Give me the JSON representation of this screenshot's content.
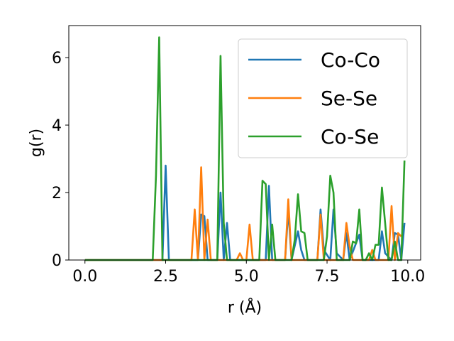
{
  "chart_data": {
    "type": "line",
    "xlabel": "r (Å)",
    "ylabel": "g(r)",
    "xlim": [
      -0.5,
      10.4
    ],
    "ylim": [
      0,
      6.95
    ],
    "xticks": [
      0.0,
      2.5,
      5.0,
      7.5,
      10.0
    ],
    "xtick_labels": [
      "0.0",
      "2.5",
      "5.0",
      "7.5",
      "10.0"
    ],
    "yticks": [
      0,
      2,
      4,
      6
    ],
    "ytick_labels": [
      "0",
      "2",
      "4",
      "6"
    ],
    "grid": false,
    "legend_position": "top-right",
    "series": [
      {
        "name": "Co-Co",
        "color": "#1f77b4",
        "points": [
          [
            0.0,
            0
          ],
          [
            2.4,
            0
          ],
          [
            2.5,
            2.8
          ],
          [
            2.6,
            0
          ],
          [
            3.5,
            0
          ],
          [
            3.6,
            1.35
          ],
          [
            3.7,
            1.3
          ],
          [
            3.8,
            0
          ],
          [
            4.1,
            0
          ],
          [
            4.2,
            2.0
          ],
          [
            4.3,
            0
          ],
          [
            4.4,
            1.1
          ],
          [
            4.5,
            0
          ],
          [
            5.6,
            0
          ],
          [
            5.7,
            2.2
          ],
          [
            5.8,
            0
          ],
          [
            6.2,
            0
          ],
          [
            6.3,
            1.5
          ],
          [
            6.4,
            0
          ],
          [
            6.6,
            0.85
          ],
          [
            6.7,
            0.3
          ],
          [
            6.8,
            0
          ],
          [
            7.2,
            0
          ],
          [
            7.3,
            1.5
          ],
          [
            7.4,
            0.3
          ],
          [
            7.6,
            0
          ],
          [
            7.7,
            1.5
          ],
          [
            7.8,
            0.2
          ],
          [
            8.0,
            0
          ],
          [
            8.1,
            0.8
          ],
          [
            8.2,
            0
          ],
          [
            8.5,
            0.75
          ],
          [
            8.6,
            0
          ],
          [
            9.1,
            0
          ],
          [
            9.2,
            0.85
          ],
          [
            9.3,
            0.2
          ],
          [
            9.5,
            0
          ],
          [
            9.6,
            0.8
          ],
          [
            9.7,
            0.75
          ],
          [
            9.8,
            0
          ],
          [
            9.9,
            1.1
          ]
        ]
      },
      {
        "name": "Se-Se",
        "color": "#ff7f0e",
        "points": [
          [
            0.0,
            0
          ],
          [
            3.3,
            0
          ],
          [
            3.4,
            1.5
          ],
          [
            3.5,
            0
          ],
          [
            3.6,
            2.75
          ],
          [
            3.7,
            0
          ],
          [
            3.8,
            1.2
          ],
          [
            3.9,
            0
          ],
          [
            4.7,
            0
          ],
          [
            4.8,
            0.2
          ],
          [
            4.9,
            0
          ],
          [
            5.0,
            0
          ],
          [
            5.1,
            1.05
          ],
          [
            5.2,
            0
          ],
          [
            6.2,
            0
          ],
          [
            6.3,
            1.8
          ],
          [
            6.4,
            0
          ],
          [
            7.2,
            0
          ],
          [
            7.3,
            1.35
          ],
          [
            7.4,
            0
          ],
          [
            8.0,
            0
          ],
          [
            8.1,
            1.1
          ],
          [
            8.2,
            0.4
          ],
          [
            8.3,
            0
          ],
          [
            8.8,
            0
          ],
          [
            8.9,
            0.3
          ],
          [
            9.0,
            0
          ],
          [
            9.4,
            0
          ],
          [
            9.5,
            1.6
          ],
          [
            9.6,
            0
          ],
          [
            9.7,
            0.8
          ],
          [
            9.8,
            0.7
          ]
        ]
      },
      {
        "name": "Co-Se",
        "color": "#2ca02c",
        "points": [
          [
            0.0,
            0
          ],
          [
            2.1,
            0
          ],
          [
            2.2,
            2.5
          ],
          [
            2.3,
            6.6
          ],
          [
            2.4,
            0
          ],
          [
            4.1,
            0
          ],
          [
            4.2,
            6.05
          ],
          [
            4.3,
            1.1
          ],
          [
            4.4,
            0
          ],
          [
            5.4,
            0
          ],
          [
            5.5,
            2.35
          ],
          [
            5.6,
            2.25
          ],
          [
            5.7,
            0
          ],
          [
            5.8,
            1.05
          ],
          [
            5.9,
            0
          ],
          [
            6.4,
            0
          ],
          [
            6.5,
            0.6
          ],
          [
            6.6,
            1.95
          ],
          [
            6.7,
            0.85
          ],
          [
            6.8,
            0.8
          ],
          [
            6.9,
            0
          ],
          [
            7.4,
            0
          ],
          [
            7.5,
            0.7
          ],
          [
            7.6,
            2.5
          ],
          [
            7.7,
            2.0
          ],
          [
            7.8,
            0
          ],
          [
            8.2,
            0
          ],
          [
            8.3,
            0.55
          ],
          [
            8.4,
            0.5
          ],
          [
            8.5,
            1.5
          ],
          [
            8.6,
            0
          ],
          [
            8.7,
            0
          ],
          [
            8.8,
            0.2
          ],
          [
            8.9,
            0
          ],
          [
            9.0,
            0.45
          ],
          [
            9.1,
            0.45
          ],
          [
            9.2,
            2.15
          ],
          [
            9.3,
            1.1
          ],
          [
            9.4,
            0
          ],
          [
            9.5,
            0
          ],
          [
            9.6,
            0.55
          ],
          [
            9.7,
            0
          ],
          [
            9.8,
            0
          ],
          [
            9.9,
            2.95
          ]
        ]
      }
    ]
  }
}
